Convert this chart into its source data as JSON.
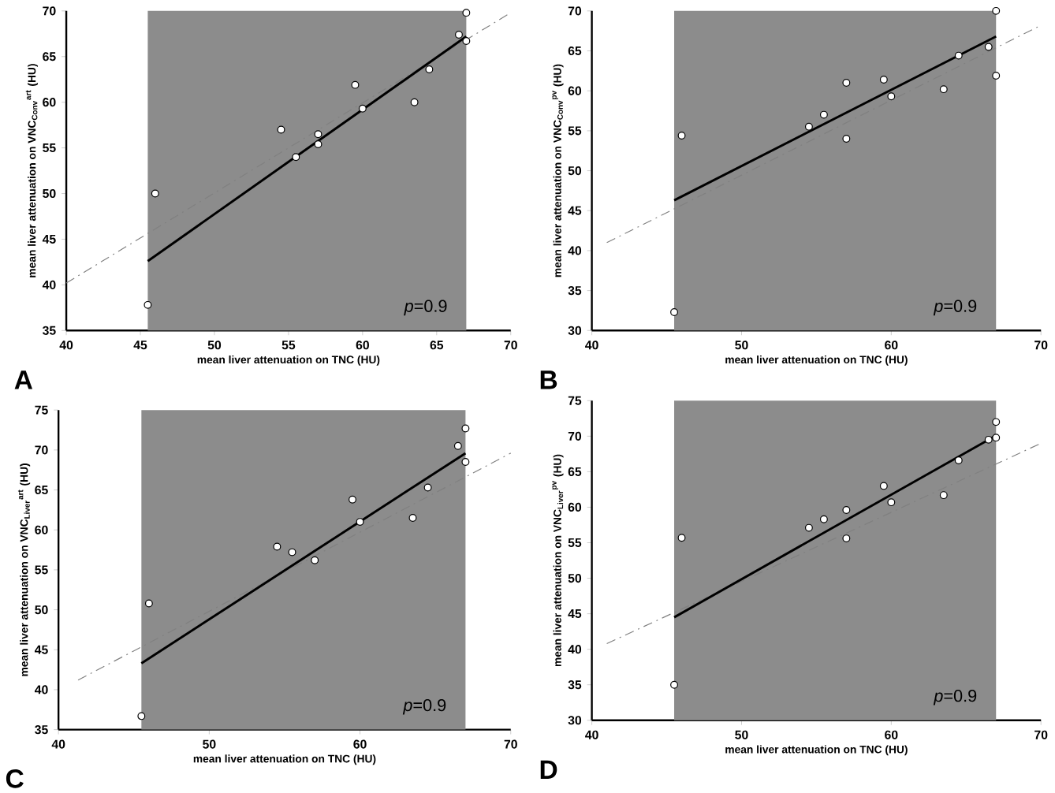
{
  "chart_data": [
    {
      "type": "scatter",
      "xlabel": "mean liver attenuation on TNC (HU)",
      "ylabel": "mean liver attenuation on VNC$_{Conv}$$^{art}$ (HU)",
      "xlim": [
        40,
        70
      ],
      "ylim": [
        35,
        70
      ],
      "xticks": [
        40,
        45,
        50,
        55,
        60,
        65,
        70
      ],
      "yticks": [
        35,
        40,
        45,
        50,
        55,
        60,
        65,
        70
      ],
      "bands": [
        {
          "axis": "x",
          "from": 45.5,
          "to": 67,
          "color": "#8c8c8c"
        }
      ],
      "series": [
        {
          "type": "line",
          "color": "#808080",
          "line_style": "dashed",
          "x": [
            40,
            70
          ],
          "values": [
            40.2,
            69.8
          ]
        },
        {
          "type": "line",
          "color": "#000000",
          "x": [
            45.5,
            67
          ],
          "values": [
            42.6,
            67.2
          ]
        },
        {
          "color": "#ffffff",
          "marker": "circle",
          "x": [
            45.5,
            46,
            54.5,
            55.5,
            57,
            57,
            59.5,
            60,
            63.5,
            64.5,
            66.5,
            67,
            67
          ],
          "values": [
            37.8,
            50,
            57,
            54,
            56.5,
            55.4,
            61.9,
            59.3,
            60,
            63.6,
            67.4,
            69.8,
            66.7
          ]
        }
      ],
      "annotations": [
        "*p*=0.9",
        "A"
      ]
    },
    {
      "type": "scatter",
      "xlabel": "mean liver attenuation on TNC (HU)",
      "ylabel": "mean liver attenuation on VNC$_{Conv}$$^{pv}$ (HU)",
      "xlim": [
        40,
        70
      ],
      "ylim": [
        30,
        70
      ],
      "xticks": [
        40,
        50,
        60,
        70
      ],
      "yticks": [
        30,
        35,
        40,
        45,
        50,
        55,
        60,
        65,
        70
      ],
      "bands": [
        {
          "axis": "x",
          "from": 45.5,
          "to": 67,
          "color": "#8c8c8c"
        }
      ],
      "series": [
        {
          "type": "line",
          "color": "#808080",
          "line_style": "dashed",
          "x": [
            41,
            70
          ],
          "values": [
            41,
            68.2
          ]
        },
        {
          "type": "line",
          "color": "#000000",
          "x": [
            45.5,
            67
          ],
          "values": [
            46.3,
            66.8
          ]
        },
        {
          "color": "#ffffff",
          "marker": "circle",
          "x": [
            45.5,
            46,
            54.5,
            55.5,
            57,
            57,
            59.5,
            60,
            63.5,
            64.5,
            66.5,
            67,
            67
          ],
          "values": [
            32.3,
            54.4,
            55.5,
            57,
            61,
            54,
            61.4,
            59.3,
            60.2,
            64.4,
            65.5,
            70,
            61.9
          ]
        }
      ],
      "annotations": [
        "*p*=0.9",
        "B"
      ]
    },
    {
      "type": "scatter",
      "xlabel": "mean liver attenuation on TNC (HU)",
      "ylabel": "mean liver attenuation on VNC$_{Liver}$$^{art}$ (HU)",
      "xlim": [
        40,
        70
      ],
      "ylim": [
        35,
        75
      ],
      "xticks": [
        40,
        50,
        60,
        70
      ],
      "yticks": [
        35,
        40,
        45,
        50,
        55,
        60,
        65,
        70,
        75
      ],
      "bands": [
        {
          "axis": "x",
          "from": 45.5,
          "to": 67,
          "color": "#8c8c8c"
        }
      ],
      "series": [
        {
          "type": "line",
          "color": "#808080",
          "line_style": "dashed",
          "x": [
            41.3,
            70
          ],
          "values": [
            41.2,
            69.6
          ]
        },
        {
          "type": "line",
          "color": "#000000",
          "x": [
            45.5,
            67
          ],
          "values": [
            43.3,
            69.6
          ]
        },
        {
          "color": "#ffffff",
          "marker": "circle",
          "x": [
            45.5,
            46,
            54.5,
            55.5,
            57,
            59.5,
            60,
            63.5,
            64.5,
            66.5,
            67,
            67
          ],
          "values": [
            36.7,
            50.8,
            57.9,
            57.2,
            56.2,
            63.8,
            61,
            61.5,
            65.3,
            70.5,
            72.7,
            68.5
          ]
        }
      ],
      "annotations": [
        "*p*=0.9",
        "C"
      ]
    },
    {
      "type": "scatter",
      "xlabel": "mean liver attenuation on TNC (HU)",
      "ylabel": "mean liver attenuation on VNC$_{Liver}$$^{pv}$ (HU)",
      "xlim": [
        40,
        70
      ],
      "ylim": [
        30,
        75
      ],
      "xticks": [
        40,
        50,
        60,
        70
      ],
      "yticks": [
        30,
        35,
        40,
        45,
        50,
        55,
        60,
        65,
        70,
        75
      ],
      "bands": [
        {
          "axis": "x",
          "from": 45.5,
          "to": 67,
          "color": "#8c8c8c"
        }
      ],
      "series": [
        {
          "type": "line",
          "color": "#808080",
          "line_style": "dashed",
          "x": [
            41,
            70
          ],
          "values": [
            40.8,
            69
          ]
        },
        {
          "type": "line",
          "color": "#000000",
          "x": [
            45.5,
            67
          ],
          "values": [
            44.5,
            70.1
          ]
        },
        {
          "color": "#ffffff",
          "marker": "circle",
          "x": [
            45.5,
            46,
            54.5,
            55.5,
            57,
            57,
            59.5,
            60,
            63.5,
            64.5,
            66.5,
            67,
            67
          ],
          "values": [
            35,
            55.7,
            57.1,
            58.3,
            59.6,
            55.6,
            63,
            60.7,
            61.7,
            66.6,
            69.5,
            72,
            69.8
          ]
        }
      ],
      "annotations": [
        "*p*=0.9",
        "D"
      ]
    }
  ]
}
